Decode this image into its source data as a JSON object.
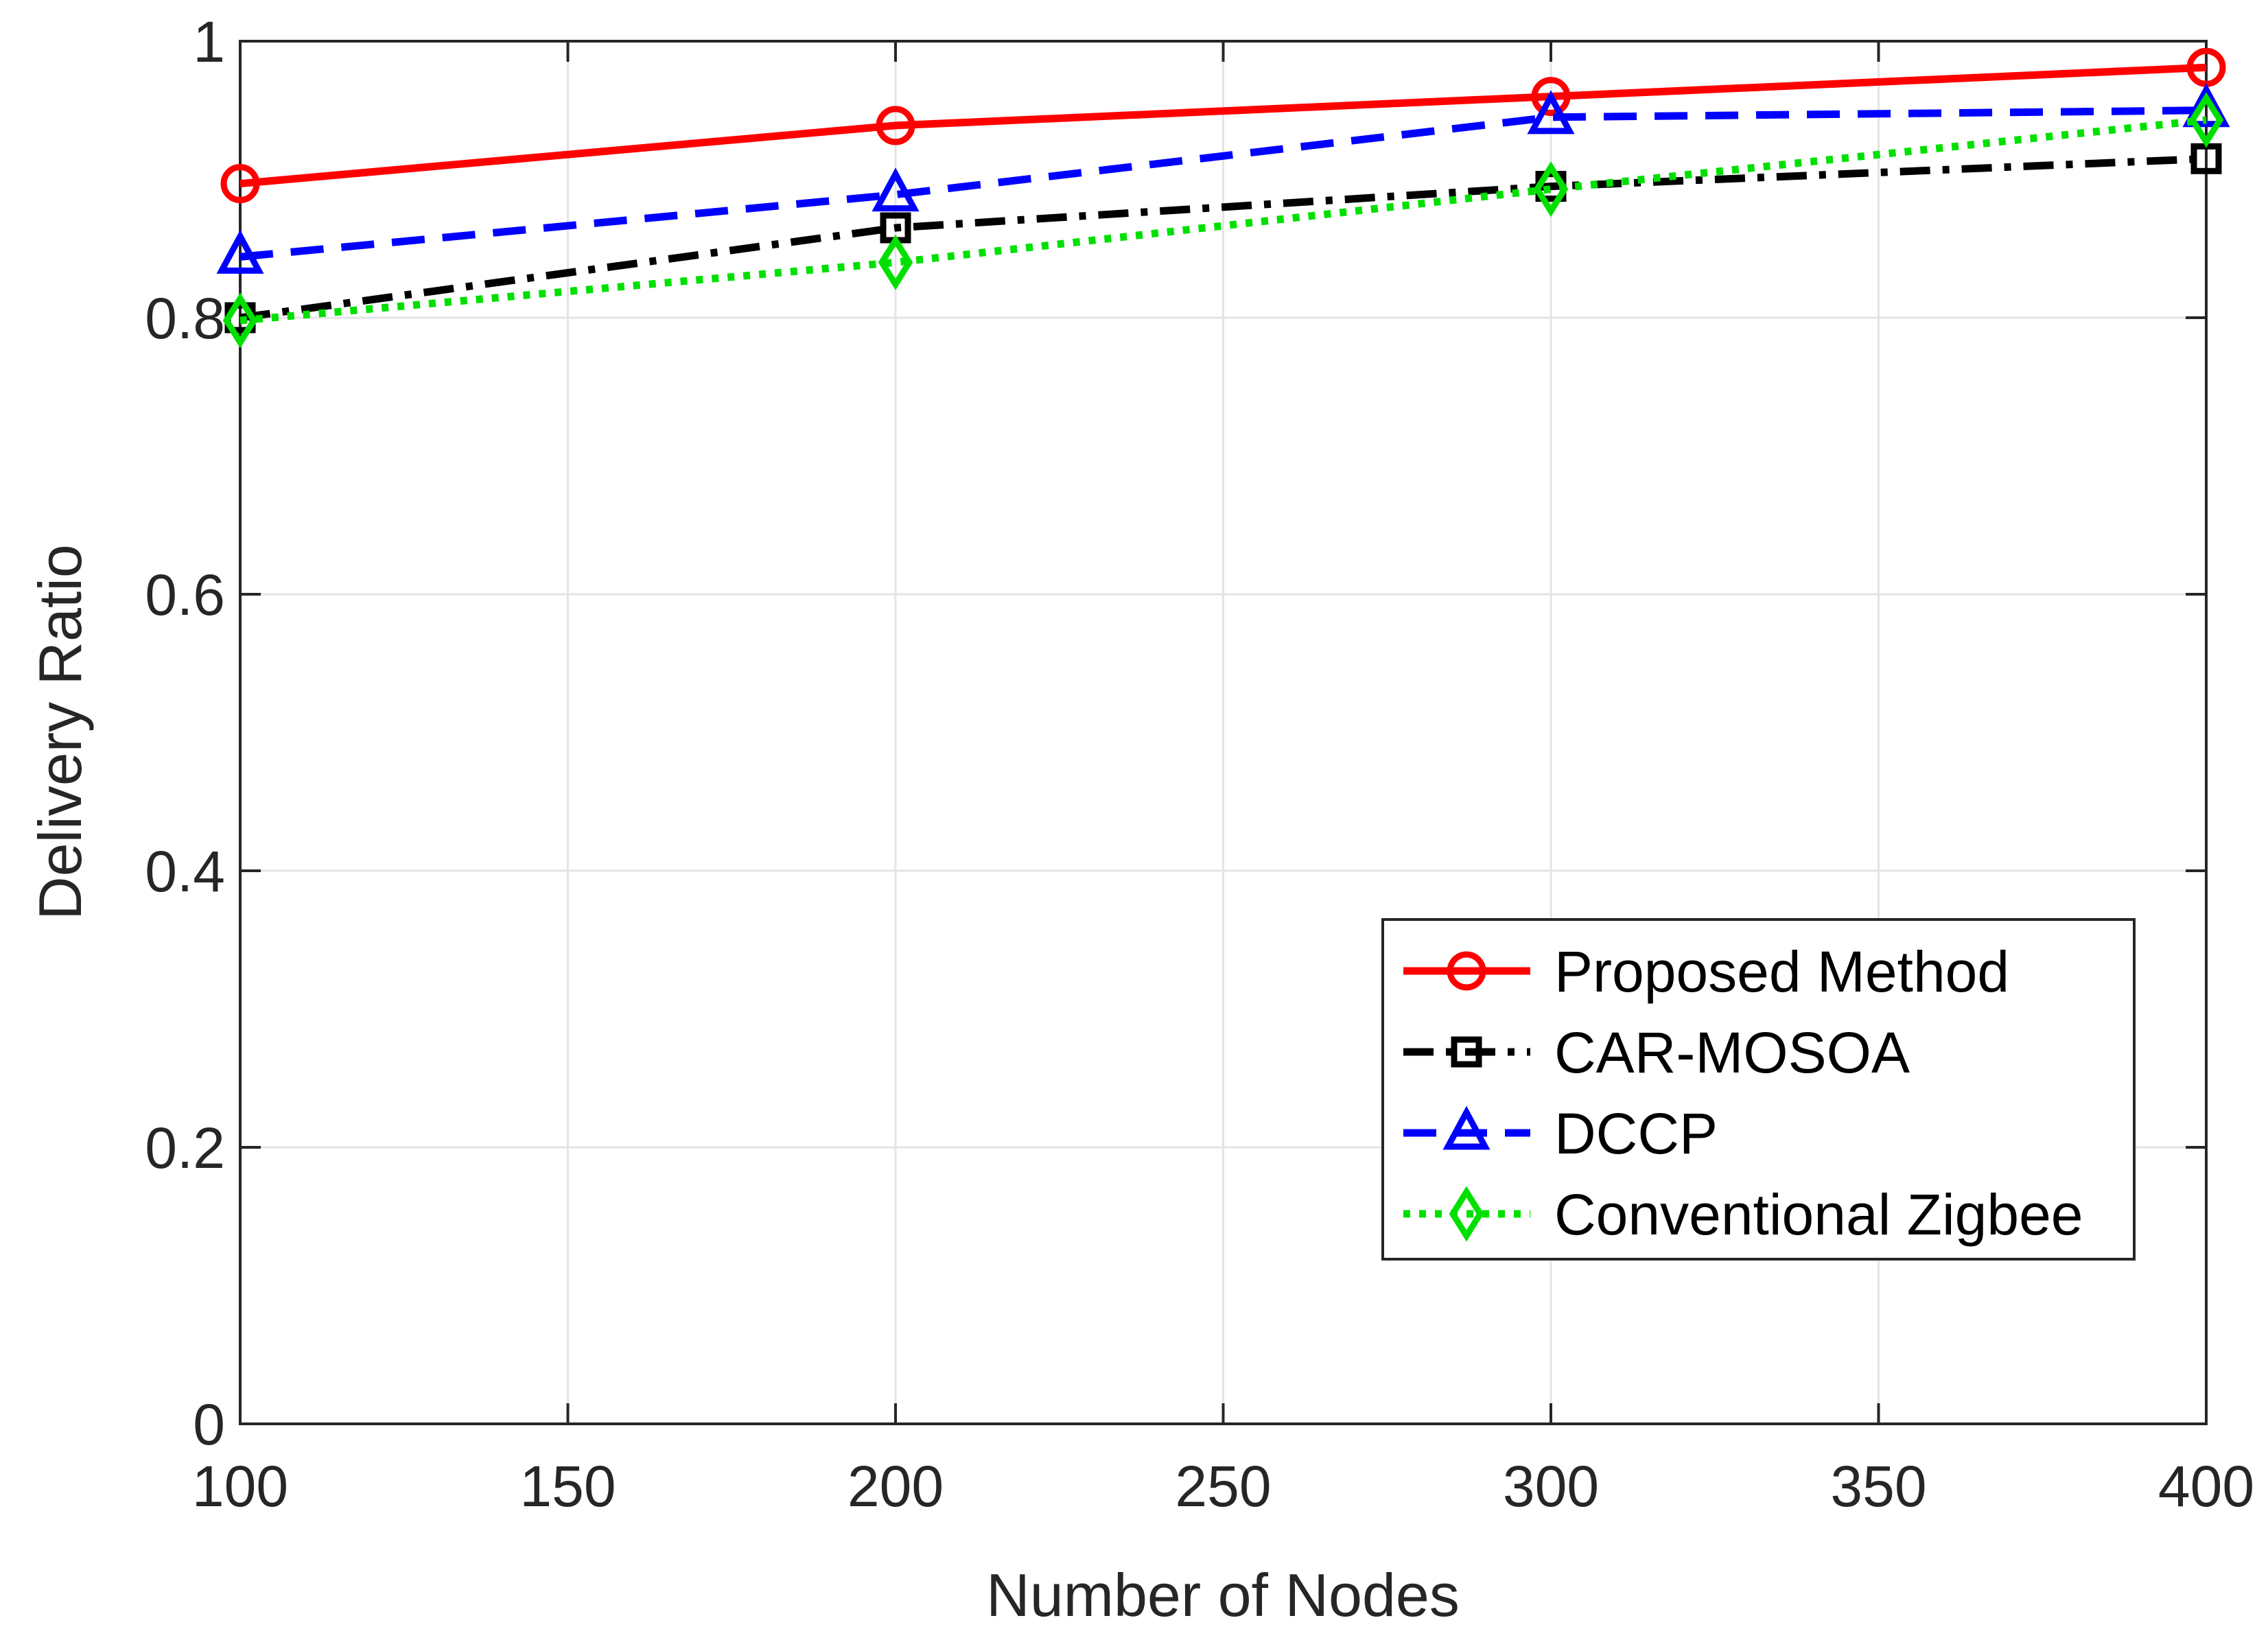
{
  "chart_data": {
    "type": "line",
    "title": "",
    "xlabel": "Number of Nodes",
    "ylabel": "Delivery Ratio",
    "xlim": [
      100,
      400
    ],
    "ylim": [
      0,
      1
    ],
    "xticks": [
      100,
      150,
      200,
      250,
      300,
      350,
      400
    ],
    "xtick_labels": [
      "100",
      "150",
      "200",
      "250",
      "300",
      "350",
      "400"
    ],
    "yticks": [
      0,
      0.2,
      0.4,
      0.6,
      0.8,
      1
    ],
    "ytick_labels": [
      "0",
      "0.2",
      "0.4",
      "0.6",
      "0.8",
      "1"
    ],
    "grid": true,
    "legend_position": "lower-right",
    "x": [
      100,
      200,
      300,
      400
    ],
    "series": [
      {
        "name": "Proposed Method",
        "values": [
          0.897,
          0.939,
          0.96,
          0.981
        ],
        "color": "#ff0000",
        "dash": "solid",
        "marker": "circle"
      },
      {
        "name": "CAR-MOSOA",
        "values": [
          0.8,
          0.865,
          0.895,
          0.915
        ],
        "color": "#000000",
        "dash": "dashdot",
        "marker": "square"
      },
      {
        "name": "DCCP",
        "values": [
          0.844,
          0.889,
          0.945,
          0.95
        ],
        "color": "#0000ff",
        "dash": "dashed",
        "marker": "triangle"
      },
      {
        "name": "Conventional Zigbee",
        "values": [
          0.798,
          0.84,
          0.893,
          0.943
        ],
        "color": "#00e000",
        "dash": "dotted",
        "marker": "diamond"
      }
    ]
  }
}
